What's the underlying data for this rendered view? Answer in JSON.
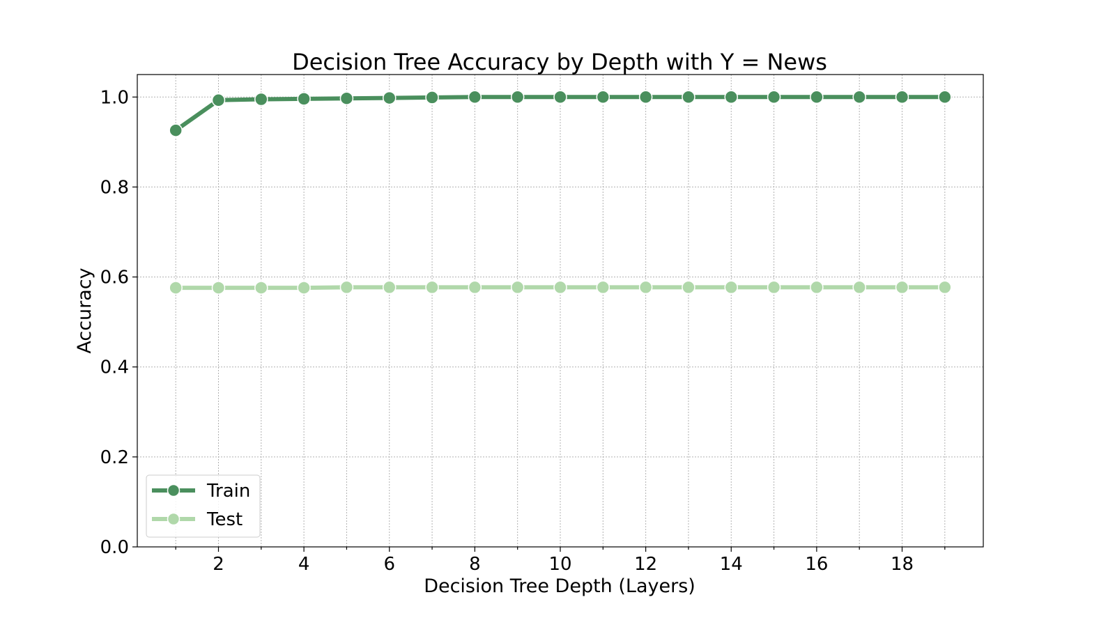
{
  "chart_data": {
    "type": "line",
    "title": "Decision Tree Accuracy by Depth with Y = News",
    "xlabel": "Decision Tree Depth (Layers)",
    "ylabel": "Accuracy",
    "xlim": [
      0.1,
      19.9
    ],
    "ylim": [
      0.0,
      1.05
    ],
    "x_ticks": [
      2,
      4,
      6,
      8,
      10,
      12,
      14,
      16,
      18
    ],
    "x_minor_ticks": [
      1,
      3,
      5,
      7,
      9,
      11,
      13,
      15,
      17,
      19
    ],
    "y_ticks": [
      0.0,
      0.2,
      0.4,
      0.6,
      0.8,
      1.0
    ],
    "x_tick_labels": [
      "2",
      "4",
      "6",
      "8",
      "10",
      "12",
      "14",
      "16",
      "18"
    ],
    "y_tick_labels": [
      "0.0",
      "0.2",
      "0.4",
      "0.6",
      "0.8",
      "1.0"
    ],
    "grid": true,
    "legend_position": "bottom-left",
    "x": [
      1,
      2,
      3,
      4,
      5,
      6,
      7,
      8,
      9,
      10,
      11,
      12,
      13,
      14,
      15,
      16,
      17,
      18,
      19
    ],
    "series": [
      {
        "name": "Train",
        "color": "#4a8f5d",
        "values": [
          0.926,
          0.993,
          0.995,
          0.996,
          0.997,
          0.998,
          0.999,
          1.0,
          1.0,
          1.0,
          1.0,
          1.0,
          1.0,
          1.0,
          1.0,
          1.0,
          1.0,
          1.0,
          1.0
        ]
      },
      {
        "name": "Test",
        "color": "#b0d8aa",
        "values": [
          0.576,
          0.576,
          0.576,
          0.576,
          0.577,
          0.577,
          0.577,
          0.577,
          0.577,
          0.577,
          0.577,
          0.577,
          0.577,
          0.577,
          0.577,
          0.577,
          0.577,
          0.577,
          0.577
        ]
      }
    ]
  }
}
